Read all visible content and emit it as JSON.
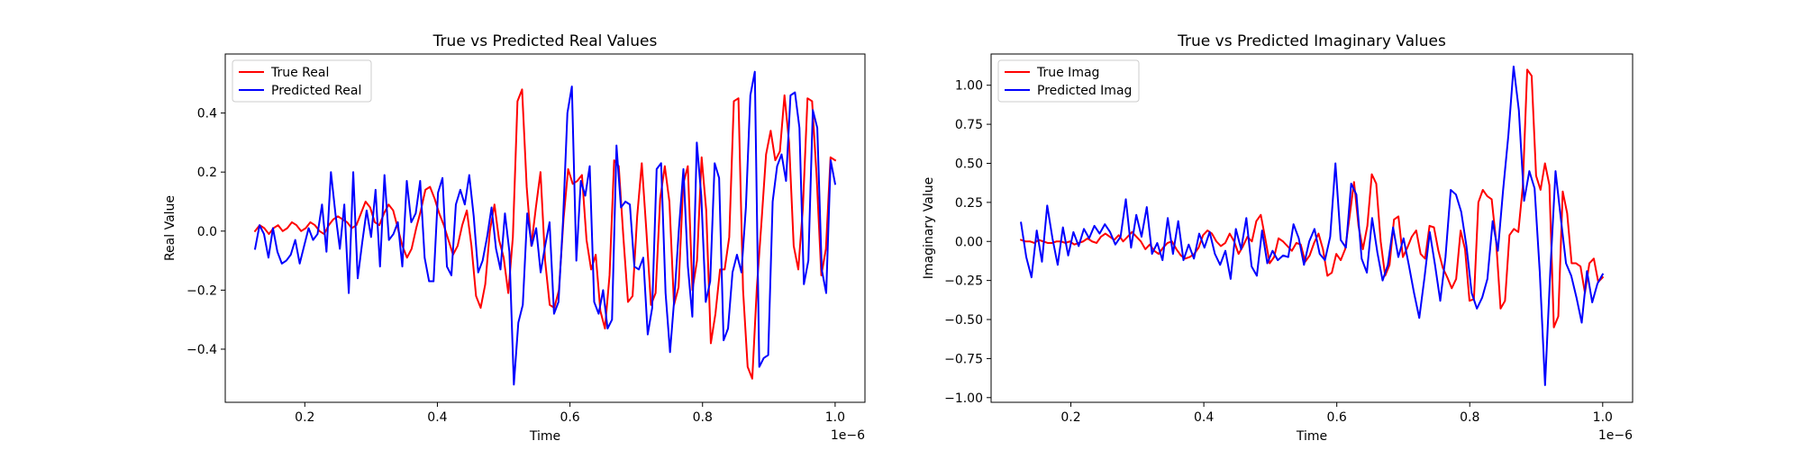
{
  "chart_data": [
    {
      "type": "line",
      "title": "True vs Predicted Real Values",
      "xlabel": "Time",
      "ylabel": "Real Value",
      "x_offset_text": "1e−6",
      "xlim": [
        0.08,
        1.045
      ],
      "ylim": [
        -0.58,
        0.6
      ],
      "x_ticks": [
        0.2,
        0.4,
        0.6,
        0.8,
        1.0
      ],
      "x_tick_labels": [
        "0.2",
        "0.4",
        "0.6",
        "0.8",
        "1.0"
      ],
      "y_ticks": [
        -0.4,
        -0.2,
        0.0,
        0.2,
        0.4
      ],
      "y_tick_labels": [
        "−0.4",
        "−0.2",
        "0.0",
        "0.2",
        "0.4"
      ],
      "grid": false,
      "legend_position": "upper left",
      "x_start": 0.125,
      "x_end": 1.0,
      "series": [
        {
          "name": "True Real",
          "color": "#ff0000",
          "values": [
            0.0,
            0.02,
            0.01,
            -0.01,
            0.01,
            0.02,
            0.0,
            0.01,
            0.03,
            0.02,
            0.0,
            0.01,
            0.03,
            0.02,
            0.0,
            -0.01,
            0.02,
            0.04,
            0.05,
            0.04,
            0.03,
            0.01,
            0.02,
            0.06,
            0.1,
            0.08,
            0.03,
            0.02,
            0.06,
            0.09,
            0.07,
            0.01,
            -0.05,
            -0.09,
            -0.06,
            0.01,
            0.07,
            0.14,
            0.15,
            0.11,
            0.06,
            0.02,
            -0.03,
            -0.08,
            -0.05,
            0.02,
            0.07,
            -0.05,
            -0.22,
            -0.26,
            -0.18,
            0.0,
            0.09,
            -0.03,
            -0.09,
            -0.21,
            -0.02,
            0.44,
            0.48,
            0.15,
            -0.05,
            0.08,
            0.2,
            -0.1,
            -0.25,
            -0.26,
            -0.2,
            0.04,
            0.21,
            0.16,
            0.17,
            0.19,
            -0.03,
            -0.13,
            -0.08,
            -0.27,
            -0.33,
            -0.15,
            0.24,
            0.22,
            -0.02,
            -0.24,
            -0.22,
            0.05,
            0.23,
            0.0,
            -0.25,
            -0.21,
            0.11,
            0.22,
            0.1,
            -0.25,
            -0.19,
            0.16,
            0.22,
            -0.2,
            -0.1,
            0.25,
            0.07,
            -0.38,
            -0.28,
            -0.13,
            -0.13,
            -0.02,
            0.44,
            0.45,
            -0.2,
            -0.46,
            -0.5,
            -0.19,
            0.03,
            0.26,
            0.34,
            0.24,
            0.27,
            0.46,
            0.3,
            -0.05,
            -0.13,
            0.08,
            0.45,
            0.44,
            0.18,
            -0.15,
            -0.06,
            0.25,
            0.24
          ]
        },
        {
          "name": "Predicted Real",
          "color": "#0000ff",
          "values": [
            -0.06,
            0.02,
            -0.01,
            -0.09,
            0.01,
            -0.07,
            -0.11,
            -0.1,
            -0.08,
            -0.03,
            -0.11,
            -0.05,
            0.01,
            -0.03,
            -0.01,
            0.09,
            -0.07,
            0.2,
            0.06,
            -0.06,
            0.09,
            -0.21,
            0.2,
            -0.16,
            -0.04,
            0.07,
            -0.02,
            0.14,
            -0.12,
            0.19,
            -0.03,
            -0.01,
            0.03,
            -0.12,
            0.17,
            0.03,
            0.06,
            0.17,
            -0.09,
            -0.17,
            -0.17,
            0.13,
            0.18,
            -0.12,
            -0.15,
            0.09,
            0.14,
            0.09,
            0.19,
            0.05,
            -0.14,
            -0.1,
            -0.02,
            0.08,
            -0.06,
            -0.13,
            0.06,
            -0.07,
            -0.52,
            -0.31,
            -0.25,
            0.06,
            -0.05,
            0.01,
            -0.14,
            -0.05,
            0.03,
            -0.28,
            -0.24,
            0.03,
            0.4,
            0.49,
            -0.1,
            0.17,
            0.12,
            0.22,
            -0.24,
            -0.28,
            -0.2,
            -0.33,
            -0.3,
            0.29,
            0.08,
            0.1,
            0.09,
            -0.12,
            -0.13,
            -0.09,
            -0.35,
            -0.26,
            0.21,
            0.23,
            -0.21,
            -0.41,
            -0.22,
            0.01,
            0.21,
            -0.12,
            -0.29,
            0.3,
            0.12,
            -0.24,
            -0.17,
            0.23,
            0.18,
            -0.37,
            -0.33,
            -0.14,
            -0.08,
            -0.14,
            0.08,
            0.46,
            0.54,
            -0.46,
            -0.43,
            -0.42,
            0.1,
            0.22,
            0.26,
            0.17,
            0.46,
            0.47,
            0.35,
            -0.18,
            -0.1,
            0.41,
            0.35,
            -0.13,
            -0.21,
            0.24,
            0.16
          ]
        }
      ]
    },
    {
      "type": "line",
      "title": "True vs Predicted Imaginary Values",
      "xlabel": "Time",
      "ylabel": "Imaginary Value",
      "x_offset_text": "1e−6",
      "xlim": [
        0.08,
        1.045
      ],
      "ylim": [
        -1.03,
        1.2
      ],
      "x_ticks": [
        0.2,
        0.4,
        0.6,
        0.8,
        1.0
      ],
      "x_tick_labels": [
        "0.2",
        "0.4",
        "0.6",
        "0.8",
        "1.0"
      ],
      "y_ticks": [
        -1.0,
        -0.75,
        -0.5,
        -0.25,
        0.0,
        0.25,
        0.5,
        0.75,
        1.0
      ],
      "y_tick_labels": [
        "−1.00",
        "−0.75",
        "−0.50",
        "−0.25",
        "0.00",
        "0.25",
        "0.50",
        "0.75",
        "1.00"
      ],
      "grid": false,
      "legend_position": "upper left",
      "x_start": 0.125,
      "x_end": 1.0,
      "series": [
        {
          "name": "True Imag",
          "color": "#ff0000",
          "values": [
            0.01,
            0.0,
            0.0,
            -0.01,
            0.01,
            0.0,
            -0.01,
            -0.01,
            0.0,
            0.0,
            -0.01,
            0.0,
            -0.02,
            -0.01,
            0.0,
            0.02,
            0.0,
            -0.01,
            0.03,
            0.05,
            0.03,
            0.01,
            0.04,
            0.0,
            0.03,
            0.06,
            0.03,
            0.0,
            -0.05,
            -0.02,
            -0.06,
            -0.08,
            -0.04,
            -0.01,
            0.0,
            -0.05,
            -0.09,
            -0.11,
            -0.1,
            -0.08,
            -0.04,
            0.04,
            0.07,
            0.05,
            0.0,
            -0.03,
            -0.01,
            0.05,
            0.0,
            -0.08,
            -0.03,
            0.03,
            0.0,
            0.13,
            0.17,
            0.02,
            -0.14,
            -0.1,
            0.02,
            0.0,
            -0.03,
            -0.06,
            -0.01,
            -0.02,
            -0.13,
            -0.09,
            -0.01,
            0.05,
            -0.05,
            -0.22,
            -0.2,
            -0.08,
            -0.12,
            -0.05,
            0.16,
            0.38,
            0.1,
            -0.05,
            0.1,
            0.43,
            0.37,
            0.0,
            -0.22,
            -0.15,
            0.14,
            0.16,
            -0.1,
            -0.04,
            0.03,
            0.07,
            -0.08,
            -0.11,
            0.1,
            0.09,
            -0.06,
            -0.17,
            -0.23,
            -0.3,
            -0.24,
            0.07,
            -0.05,
            -0.38,
            -0.37,
            0.25,
            0.33,
            0.29,
            0.27,
            0.0,
            -0.43,
            -0.38,
            0.04,
            0.08,
            0.06,
            0.35,
            1.1,
            1.06,
            0.42,
            0.33,
            0.5,
            0.36,
            -0.55,
            -0.48,
            0.32,
            0.18,
            -0.14,
            -0.14,
            -0.16,
            -0.33,
            -0.14,
            -0.11,
            -0.26,
            -0.23
          ]
        },
        {
          "name": "Predicted Imag",
          "color": "#0000ff",
          "values": [
            0.12,
            -0.1,
            -0.23,
            0.07,
            -0.13,
            0.23,
            0.02,
            -0.15,
            0.09,
            -0.09,
            0.06,
            -0.03,
            0.08,
            0.02,
            0.1,
            0.05,
            0.11,
            0.06,
            -0.02,
            0.03,
            0.27,
            -0.04,
            0.17,
            0.03,
            0.22,
            -0.08,
            -0.01,
            -0.12,
            0.15,
            -0.08,
            0.13,
            -0.12,
            -0.02,
            -0.11,
            0.05,
            -0.04,
            0.06,
            -0.08,
            -0.15,
            -0.06,
            -0.24,
            0.08,
            -0.05,
            0.15,
            -0.16,
            -0.22,
            0.07,
            -0.14,
            -0.06,
            -0.12,
            -0.09,
            -0.1,
            0.11,
            0.02,
            -0.15,
            0.0,
            0.08,
            -0.08,
            -0.12,
            0.03,
            0.5,
            0.01,
            -0.04,
            0.37,
            0.3,
            -0.11,
            -0.2,
            0.15,
            -0.07,
            -0.25,
            -0.15,
            0.09,
            -0.1,
            0.02,
            -0.15,
            -0.33,
            -0.49,
            -0.23,
            0.06,
            -0.15,
            -0.38,
            -0.1,
            0.33,
            0.3,
            0.19,
            -0.03,
            -0.33,
            -0.43,
            -0.36,
            -0.24,
            0.13,
            -0.06,
            0.33,
            0.68,
            1.12,
            0.84,
            0.26,
            0.45,
            0.34,
            -0.2,
            -0.92,
            -0.19,
            0.45,
            0.15,
            -0.14,
            -0.22,
            -0.36,
            -0.52,
            -0.19,
            -0.39,
            -0.27,
            -0.21
          ]
        }
      ]
    }
  ]
}
